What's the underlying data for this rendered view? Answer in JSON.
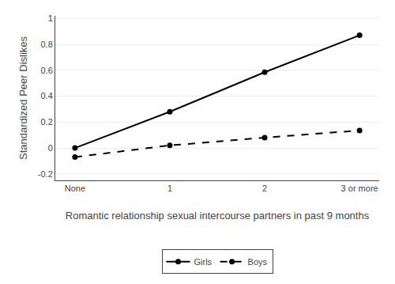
{
  "chart_data": {
    "type": "line",
    "categories": [
      "None",
      "1",
      "2",
      "3 or more"
    ],
    "series": [
      {
        "name": "Girls",
        "color": "#000000",
        "line_style": "solid",
        "marker": "circle",
        "values": [
          0.0,
          0.28,
          0.585,
          0.87
        ]
      },
      {
        "name": "Boys",
        "color": "#000000",
        "line_style": "dashed",
        "marker": "circle",
        "values": [
          -0.07,
          0.02,
          0.08,
          0.135
        ]
      }
    ],
    "xlabel": "Romantic relationship sexual intercourse partners in past 9 months",
    "ylabel": "Standardized Peer Dislikes",
    "ylim": [
      -0.25,
      1.02
    ],
    "yticks": [
      -0.2,
      0,
      0.2,
      0.4,
      0.6,
      0.8,
      1
    ],
    "grid": true,
    "legend": "bottom"
  }
}
